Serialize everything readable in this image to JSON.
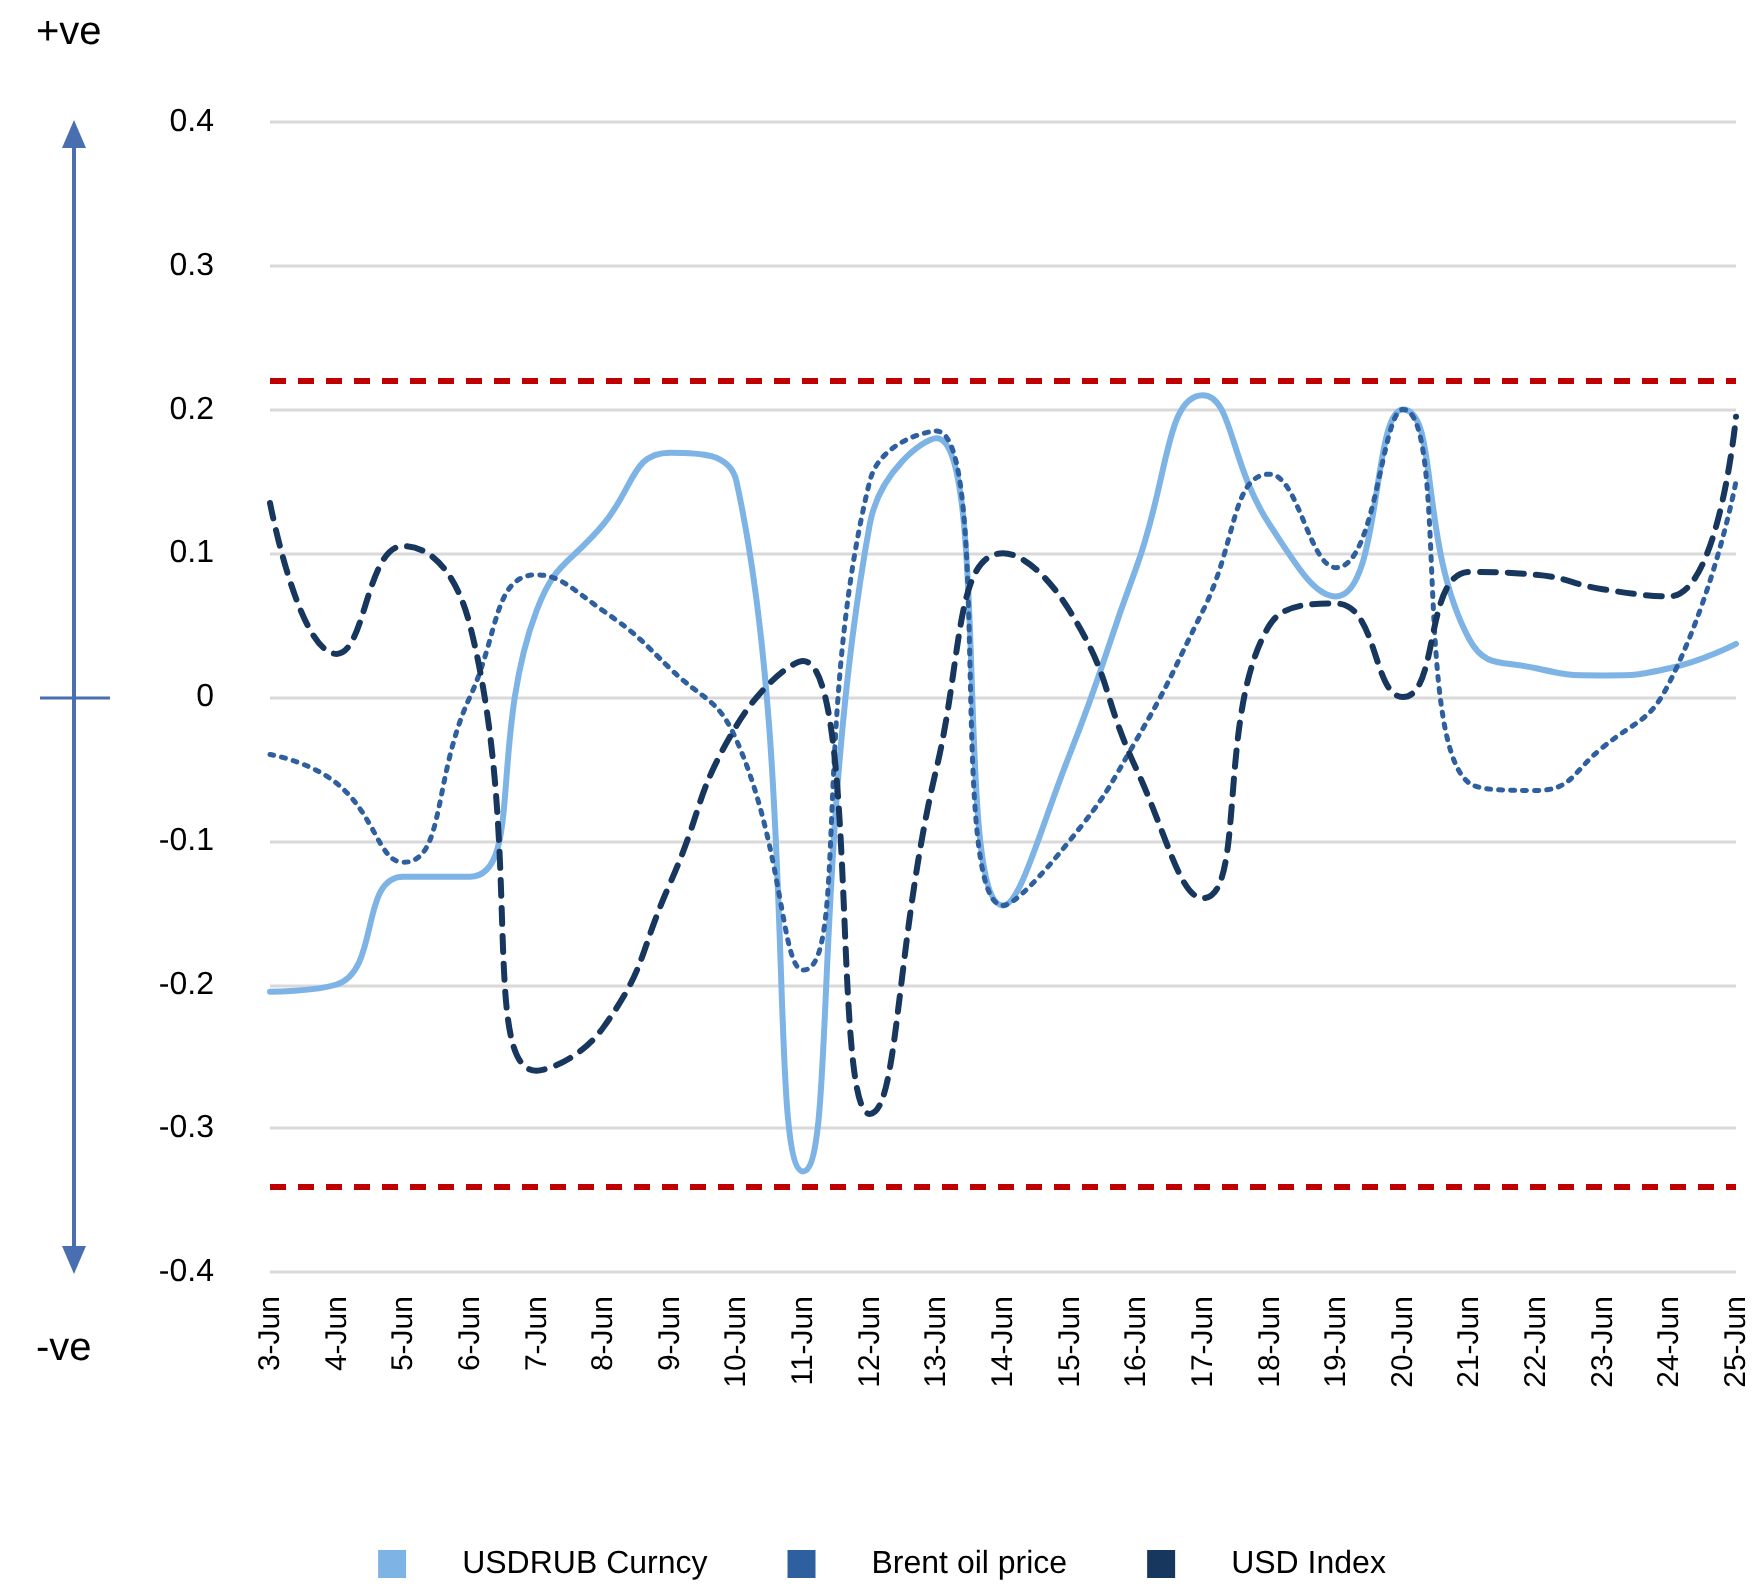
{
  "chart_data": {
    "type": "line",
    "categories": [
      "3-Jun",
      "4-Jun",
      "5-Jun",
      "6-Jun",
      "7-Jun",
      "8-Jun",
      "9-Jun",
      "10-Jun",
      "11-Jun",
      "12-Jun",
      "13-Jun",
      "14-Jun",
      "15-Jun",
      "16-Jun",
      "17-Jun",
      "18-Jun",
      "19-Jun",
      "20-Jun",
      "21-Jun",
      "22-Jun",
      "23-Jun",
      "24-Jun",
      "25-Jun"
    ],
    "series": [
      {
        "name": "USDRUB Curncy",
        "color": "#7eb3e6",
        "line_style": "solid",
        "values": [
          -0.205,
          -0.2,
          -0.125,
          -0.125,
          0.06,
          0.12,
          0.17,
          0.15,
          -0.33,
          0.12,
          0.18,
          -0.145,
          -0.04,
          0.09,
          0.21,
          0.12,
          0.07,
          0.2,
          0.04,
          0.02,
          0.015,
          0.02,
          0.037
        ]
      },
      {
        "name": "Brent oil price",
        "color": "#2e5f9e",
        "line_style": "dotted",
        "values": [
          -0.04,
          -0.06,
          -0.115,
          0.0,
          0.085,
          0.06,
          0.02,
          -0.03,
          -0.19,
          0.15,
          0.185,
          -0.145,
          -0.1,
          -0.03,
          0.06,
          0.155,
          0.09,
          0.2,
          -0.06,
          -0.065,
          -0.035,
          0.01,
          0.15
        ]
      },
      {
        "name": "USD Index",
        "color": "#17375e",
        "line_style": "dashed",
        "values": [
          0.135,
          0.03,
          0.105,
          0.05,
          -0.26,
          -0.23,
          -0.13,
          -0.02,
          0.025,
          -0.29,
          -0.05,
          0.1,
          0.06,
          -0.05,
          -0.14,
          0.05,
          0.065,
          0.0,
          0.087,
          0.085,
          0.075,
          0.07,
          0.195
        ]
      }
    ],
    "ylim": [
      -0.4,
      0.4
    ],
    "yticks": [
      -0.4,
      -0.3,
      -0.2,
      -0.1,
      0,
      0.1,
      0.2,
      0.3,
      0.4
    ],
    "ref_lines": [
      {
        "axis": "y",
        "value": 0.22,
        "color": "#c00000",
        "line_style": "dashed"
      },
      {
        "axis": "y",
        "value": -0.34,
        "color": "#c00000",
        "line_style": "dashed"
      }
    ],
    "annotations": [
      "+ve",
      "-ve"
    ],
    "grid": "y",
    "legend": "bottom",
    "marker": "none"
  }
}
